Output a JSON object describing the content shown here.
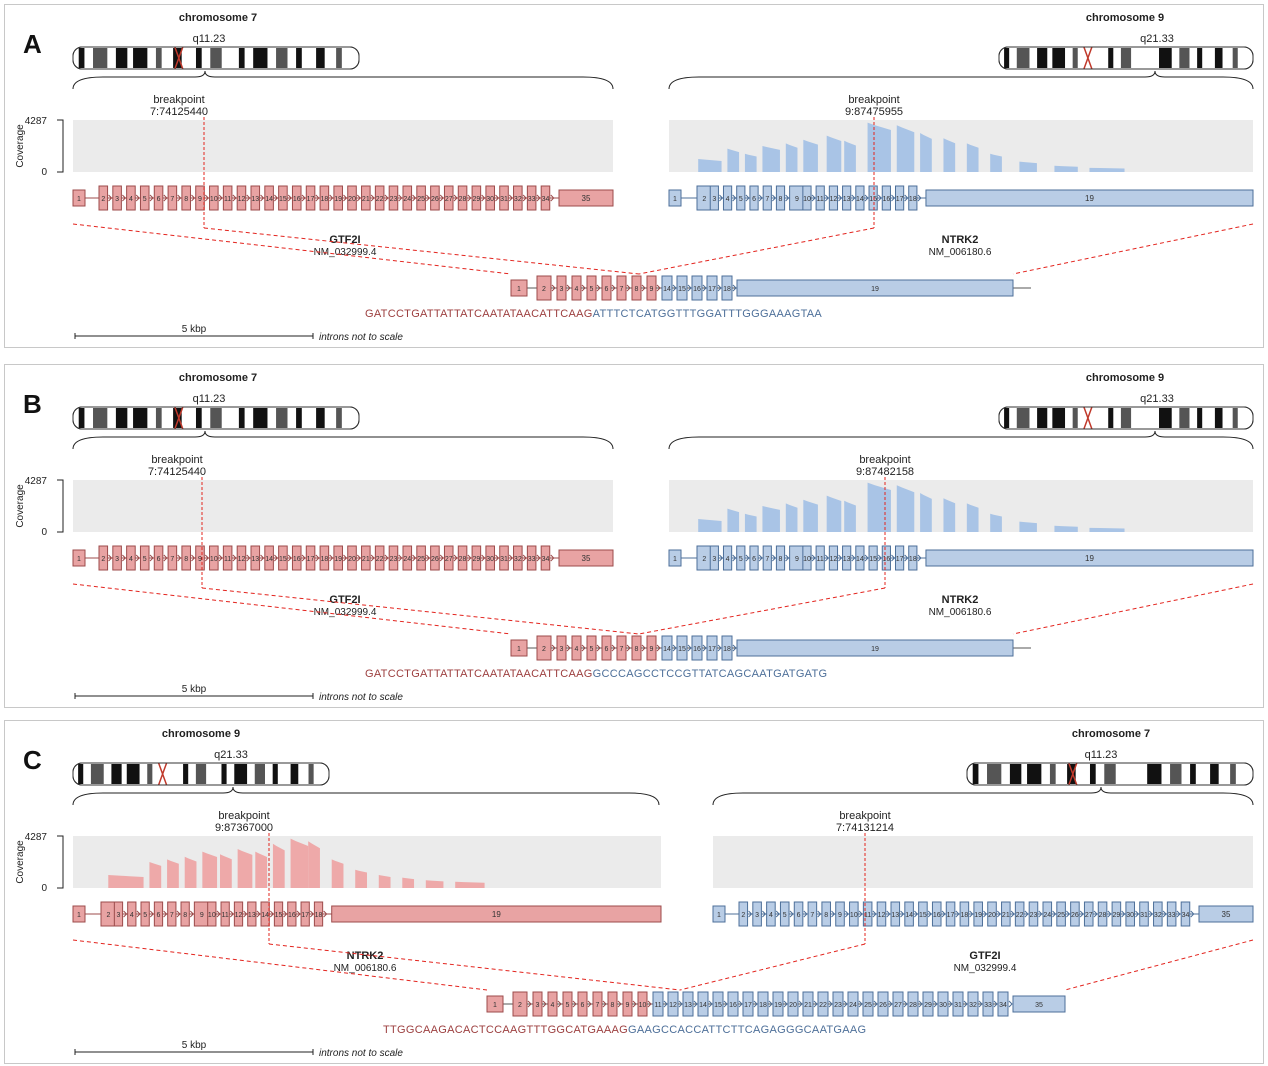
{
  "colors": {
    "red_exon_fill": "#e8a3a3",
    "red_exon_stroke": "#9c4b4b",
    "blue_exon_fill": "#b9cde6",
    "blue_exon_stroke": "#4d6f99",
    "red_coverage": "#eea9a9",
    "blue_coverage": "#a9c4e6",
    "coverage_bg": "#ebebeb",
    "breakpoint_line": "#e3241e",
    "red_seq": "#9c3e3e",
    "blue_seq": "#4d6f99"
  },
  "common": {
    "coverage_label": "Coverage",
    "coverage_max": "4287",
    "coverage_min": "0",
    "scale_label": "5 kbp",
    "scale_note": "introns not to scale"
  },
  "panels": [
    {
      "letter": "A",
      "left": {
        "chrom": "chromosome 7",
        "band": "q11.23",
        "bp_title": "breakpoint",
        "bp_pos": "7:74125440",
        "gene": "GTF2I",
        "transcript": "NM_032999.4",
        "color": "red",
        "exon_count": 35,
        "big_exon": 35,
        "has_coverage": false
      },
      "right": {
        "chrom": "chromosome 9",
        "band": "q21.33",
        "bp_title": "breakpoint",
        "bp_pos": "9:87475955",
        "gene": "NTRK2",
        "transcript": "NM_006180.6",
        "color": "blue",
        "exon_count": 19,
        "big_exon": 19,
        "has_coverage": true
      },
      "fusion": {
        "left_exons": [
          "1",
          "2",
          "3",
          "4",
          "5",
          "6",
          "7",
          "8",
          "9"
        ],
        "right_exons": [
          "14",
          "15",
          "16",
          "17",
          "18",
          "19"
        ],
        "seq_left": "GATCCTGATTATTATCAATATAACATTCAAG",
        "seq_right": "ATTTCTCATGGTTTGGATTTGGGAAAGTAA"
      }
    },
    {
      "letter": "B",
      "left": {
        "chrom": "chromosome 7",
        "band": "q11.23",
        "bp_title": "breakpoint",
        "bp_pos": "7:74125440",
        "gene": "GTF2I",
        "transcript": "NM_032999.4",
        "color": "red",
        "exon_count": 35,
        "big_exon": 35,
        "has_coverage": false
      },
      "right": {
        "chrom": "chromosome 9",
        "band": "q21.33",
        "bp_title": "breakpoint",
        "bp_pos": "9:87482158",
        "gene": "NTRK2",
        "transcript": "NM_006180.6",
        "color": "blue",
        "exon_count": 19,
        "big_exon": 19,
        "has_coverage": true
      },
      "fusion": {
        "left_exons": [
          "1",
          "2",
          "3",
          "4",
          "5",
          "6",
          "7",
          "8",
          "9"
        ],
        "right_exons": [
          "14",
          "15",
          "16",
          "17",
          "18",
          "19"
        ],
        "seq_left": "GATCCTGATTATTATCAATATAACATTCAAG",
        "seq_right": "GCCCAGCCTCCGTTATCAGCAATGATGATG"
      }
    },
    {
      "letter": "C",
      "left": {
        "chrom": "chromosome 9",
        "band": "q21.33",
        "bp_title": "breakpoint",
        "bp_pos": "9:87367000",
        "gene": "NTRK2",
        "transcript": "NM_006180.6",
        "color": "red",
        "exon_count": 19,
        "big_exon": 19,
        "has_coverage": true
      },
      "right": {
        "chrom": "chromosome 7",
        "band": "q11.23",
        "bp_title": "breakpoint",
        "bp_pos": "7:74131214",
        "gene": "GTF2I",
        "transcript": "NM_032999.4",
        "color": "blue",
        "exon_count": 35,
        "big_exon": 35,
        "has_coverage": false
      },
      "fusion": {
        "left_exons": [
          "1",
          "2",
          "3",
          "4",
          "5",
          "6",
          "7",
          "8",
          "9",
          "10"
        ],
        "right_exons": [
          "11",
          "12",
          "13",
          "14",
          "15",
          "16",
          "17",
          "18",
          "19",
          "20",
          "21",
          "22",
          "23",
          "24",
          "25",
          "26",
          "27",
          "28",
          "29",
          "30",
          "31",
          "32",
          "33",
          "34",
          "35"
        ],
        "seq_left": "TTGGCAAGACACTCCAAGTTTGGCATGAAAG",
        "seq_right": "GAAGCCACCATTCTTCAGAGGGCAATGAAG"
      }
    }
  ]
}
